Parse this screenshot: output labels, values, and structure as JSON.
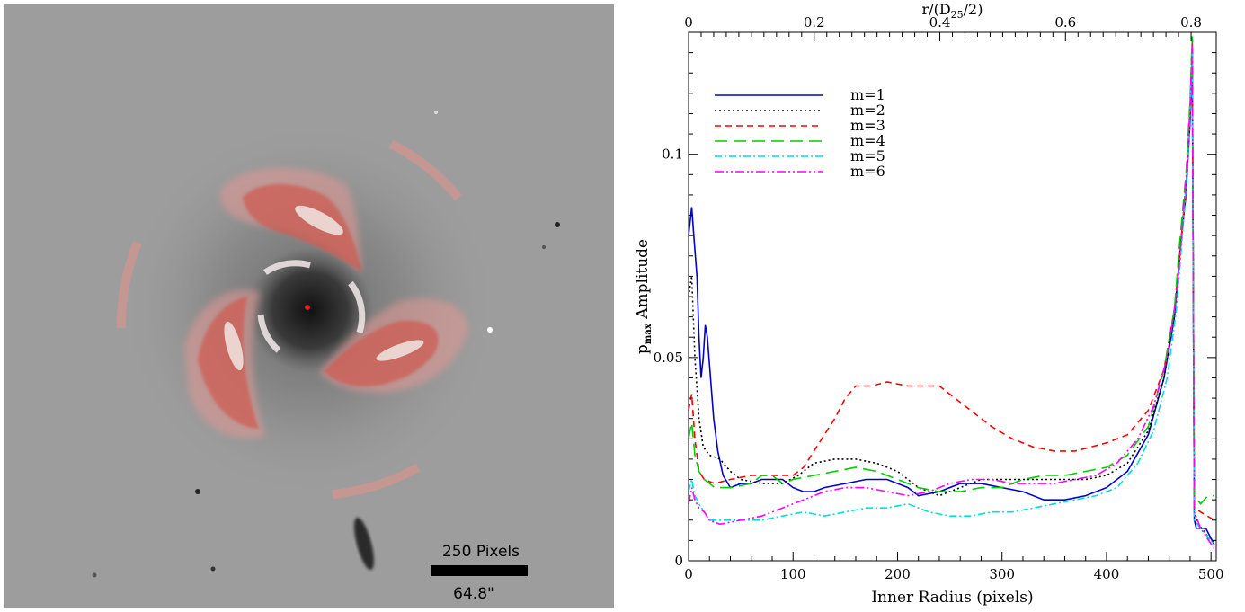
{
  "galaxy_image": {
    "scale_bar": {
      "pixels_label": "250 Pixels",
      "arcsec_label": "64.8\""
    }
  },
  "chart_data": {
    "type": "line",
    "x_label": "Inner Radius (pixels)",
    "y_label_prefix": "p",
    "y_label_sub": "max",
    "y_label_suffix": " Amplitude",
    "top_label_prefix": "r/(D",
    "top_label_sub": "25",
    "top_label_suffix": "/2)",
    "xlim": [
      0,
      505
    ],
    "ylim": [
      0,
      0.13
    ],
    "x_ticks": [
      0,
      100,
      200,
      300,
      400,
      500
    ],
    "y_ticks": [
      0,
      0.05,
      0.1
    ],
    "y_tick_labels": [
      "0",
      "0.05",
      "0.1"
    ],
    "top_ticks": [
      0,
      0.2,
      0.4,
      0.6,
      0.8
    ],
    "top_tick_labels": [
      "0",
      "0.2",
      "0.4",
      "0.6",
      "0.8"
    ],
    "top_axis_max": 0.84,
    "legend_position": "top-left",
    "series": [
      {
        "name": "m=1",
        "color": "#0000cc",
        "dash": "",
        "points": [
          [
            0,
            0.08
          ],
          [
            3,
            0.087
          ],
          [
            5,
            0.08
          ],
          [
            8,
            0.07
          ],
          [
            10,
            0.055
          ],
          [
            12,
            0.045
          ],
          [
            14,
            0.05
          ],
          [
            16,
            0.058
          ],
          [
            18,
            0.055
          ],
          [
            21,
            0.045
          ],
          [
            24,
            0.035
          ],
          [
            28,
            0.027
          ],
          [
            33,
            0.021
          ],
          [
            40,
            0.018
          ],
          [
            50,
            0.019
          ],
          [
            60,
            0.019
          ],
          [
            70,
            0.02
          ],
          [
            80,
            0.02
          ],
          [
            90,
            0.02
          ],
          [
            100,
            0.018
          ],
          [
            110,
            0.017
          ],
          [
            120,
            0.017
          ],
          [
            130,
            0.018
          ],
          [
            150,
            0.019
          ],
          [
            170,
            0.02
          ],
          [
            190,
            0.02
          ],
          [
            210,
            0.018
          ],
          [
            220,
            0.016
          ],
          [
            240,
            0.017
          ],
          [
            260,
            0.019
          ],
          [
            280,
            0.019
          ],
          [
            300,
            0.018
          ],
          [
            320,
            0.017
          ],
          [
            340,
            0.015
          ],
          [
            360,
            0.015
          ],
          [
            380,
            0.016
          ],
          [
            400,
            0.018
          ],
          [
            420,
            0.022
          ],
          [
            440,
            0.031
          ],
          [
            455,
            0.045
          ],
          [
            465,
            0.06
          ],
          [
            470,
            0.075
          ],
          [
            476,
            0.09
          ],
          [
            480,
            0.108
          ],
          [
            482,
            0.125
          ],
          [
            484,
            0.01
          ],
          [
            486,
            0.008
          ],
          [
            495,
            0.008
          ],
          [
            503,
            0.004
          ]
        ]
      },
      {
        "name": "m=2",
        "color": "#000000",
        "dash": "2,3",
        "points": [
          [
            0,
            0.065
          ],
          [
            3,
            0.07
          ],
          [
            6,
            0.05
          ],
          [
            10,
            0.035
          ],
          [
            14,
            0.028
          ],
          [
            20,
            0.026
          ],
          [
            30,
            0.025
          ],
          [
            40,
            0.022
          ],
          [
            50,
            0.02
          ],
          [
            70,
            0.019
          ],
          [
            90,
            0.019
          ],
          [
            105,
            0.021
          ],
          [
            120,
            0.024
          ],
          [
            140,
            0.025
          ],
          [
            160,
            0.025
          ],
          [
            180,
            0.024
          ],
          [
            200,
            0.022
          ],
          [
            220,
            0.018
          ],
          [
            240,
            0.016
          ],
          [
            260,
            0.018
          ],
          [
            280,
            0.02
          ],
          [
            300,
            0.02
          ],
          [
            320,
            0.02
          ],
          [
            340,
            0.02
          ],
          [
            360,
            0.02
          ],
          [
            380,
            0.02
          ],
          [
            400,
            0.021
          ],
          [
            420,
            0.024
          ],
          [
            440,
            0.032
          ],
          [
            455,
            0.045
          ],
          [
            465,
            0.06
          ],
          [
            470,
            0.075
          ],
          [
            476,
            0.092
          ],
          [
            480,
            0.11
          ],
          [
            482,
            0.128
          ],
          [
            484,
            0.012
          ],
          [
            488,
            0.009
          ],
          [
            503,
            0.004
          ]
        ]
      },
      {
        "name": "m=3",
        "color": "#ff0000",
        "dash": "7,5",
        "points": [
          [
            0,
            0.037
          ],
          [
            3,
            0.041
          ],
          [
            6,
            0.03
          ],
          [
            10,
            0.022
          ],
          [
            15,
            0.02
          ],
          [
            25,
            0.019
          ],
          [
            40,
            0.02
          ],
          [
            60,
            0.021
          ],
          [
            80,
            0.021
          ],
          [
            100,
            0.021
          ],
          [
            110,
            0.023
          ],
          [
            120,
            0.027
          ],
          [
            130,
            0.031
          ],
          [
            140,
            0.035
          ],
          [
            150,
            0.04
          ],
          [
            160,
            0.043
          ],
          [
            175,
            0.043
          ],
          [
            190,
            0.044
          ],
          [
            210,
            0.043
          ],
          [
            240,
            0.043
          ],
          [
            255,
            0.04
          ],
          [
            270,
            0.037
          ],
          [
            290,
            0.033
          ],
          [
            310,
            0.03
          ],
          [
            330,
            0.028
          ],
          [
            350,
            0.027
          ],
          [
            370,
            0.027
          ],
          [
            385,
            0.028
          ],
          [
            400,
            0.029
          ],
          [
            420,
            0.031
          ],
          [
            440,
            0.037
          ],
          [
            455,
            0.047
          ],
          [
            465,
            0.062
          ],
          [
            470,
            0.075
          ],
          [
            476,
            0.092
          ],
          [
            480,
            0.11
          ],
          [
            482,
            0.128
          ],
          [
            484,
            0.013
          ],
          [
            490,
            0.012
          ],
          [
            503,
            0.01
          ]
        ]
      },
      {
        "name": "m=4",
        "color": "#00cc00",
        "dash": "14,7",
        "points": [
          [
            0,
            0.03
          ],
          [
            3,
            0.034
          ],
          [
            6,
            0.026
          ],
          [
            10,
            0.022
          ],
          [
            15,
            0.02
          ],
          [
            25,
            0.018
          ],
          [
            40,
            0.018
          ],
          [
            60,
            0.019
          ],
          [
            70,
            0.021
          ],
          [
            80,
            0.021
          ],
          [
            90,
            0.019
          ],
          [
            100,
            0.02
          ],
          [
            120,
            0.021
          ],
          [
            140,
            0.022
          ],
          [
            160,
            0.023
          ],
          [
            180,
            0.022
          ],
          [
            200,
            0.02
          ],
          [
            220,
            0.018
          ],
          [
            240,
            0.017
          ],
          [
            260,
            0.017
          ],
          [
            280,
            0.018
          ],
          [
            300,
            0.018
          ],
          [
            320,
            0.02
          ],
          [
            340,
            0.021
          ],
          [
            360,
            0.021
          ],
          [
            380,
            0.022
          ],
          [
            400,
            0.023
          ],
          [
            420,
            0.026
          ],
          [
            440,
            0.033
          ],
          [
            455,
            0.047
          ],
          [
            465,
            0.062
          ],
          [
            470,
            0.078
          ],
          [
            476,
            0.095
          ],
          [
            480,
            0.113
          ],
          [
            482,
            0.129
          ],
          [
            484,
            0.016
          ],
          [
            490,
            0.014
          ],
          [
            497,
            0.016
          ],
          [
            503,
            0.016
          ]
        ]
      },
      {
        "name": "m=5",
        "color": "#00dddd",
        "dash": "8,3,2,3",
        "points": [
          [
            0,
            0.017
          ],
          [
            3,
            0.02
          ],
          [
            6,
            0.016
          ],
          [
            10,
            0.014
          ],
          [
            15,
            0.012
          ],
          [
            20,
            0.01
          ],
          [
            30,
            0.01
          ],
          [
            50,
            0.01
          ],
          [
            70,
            0.01
          ],
          [
            90,
            0.011
          ],
          [
            110,
            0.012
          ],
          [
            130,
            0.011
          ],
          [
            150,
            0.012
          ],
          [
            170,
            0.013
          ],
          [
            190,
            0.013
          ],
          [
            210,
            0.014
          ],
          [
            230,
            0.012
          ],
          [
            250,
            0.011
          ],
          [
            270,
            0.011
          ],
          [
            290,
            0.012
          ],
          [
            310,
            0.012
          ],
          [
            330,
            0.013
          ],
          [
            350,
            0.014
          ],
          [
            370,
            0.015
          ],
          [
            390,
            0.016
          ],
          [
            410,
            0.018
          ],
          [
            430,
            0.024
          ],
          [
            445,
            0.032
          ],
          [
            458,
            0.045
          ],
          [
            467,
            0.062
          ],
          [
            472,
            0.078
          ],
          [
            477,
            0.095
          ],
          [
            480,
            0.11
          ],
          [
            482,
            0.127
          ],
          [
            484,
            0.01
          ],
          [
            490,
            0.008
          ],
          [
            503,
            0.004
          ]
        ]
      },
      {
        "name": "m=6",
        "color": "#ff00ff",
        "dash": "10,3,2,3,2,3",
        "points": [
          [
            0,
            0.014
          ],
          [
            3,
            0.018
          ],
          [
            6,
            0.015
          ],
          [
            10,
            0.013
          ],
          [
            15,
            0.012
          ],
          [
            20,
            0.01
          ],
          [
            30,
            0.009
          ],
          [
            50,
            0.01
          ],
          [
            70,
            0.011
          ],
          [
            90,
            0.013
          ],
          [
            110,
            0.015
          ],
          [
            130,
            0.017
          ],
          [
            150,
            0.018
          ],
          [
            170,
            0.018
          ],
          [
            190,
            0.017
          ],
          [
            210,
            0.016
          ],
          [
            230,
            0.017
          ],
          [
            250,
            0.019
          ],
          [
            270,
            0.02
          ],
          [
            290,
            0.02
          ],
          [
            310,
            0.019
          ],
          [
            330,
            0.019
          ],
          [
            350,
            0.019
          ],
          [
            370,
            0.02
          ],
          [
            390,
            0.021
          ],
          [
            410,
            0.024
          ],
          [
            430,
            0.03
          ],
          [
            445,
            0.038
          ],
          [
            458,
            0.05
          ],
          [
            467,
            0.065
          ],
          [
            472,
            0.08
          ],
          [
            477,
            0.097
          ],
          [
            480,
            0.112
          ],
          [
            482,
            0.127
          ],
          [
            484,
            0.012
          ],
          [
            490,
            0.008
          ],
          [
            503,
            0.003
          ]
        ]
      }
    ]
  }
}
